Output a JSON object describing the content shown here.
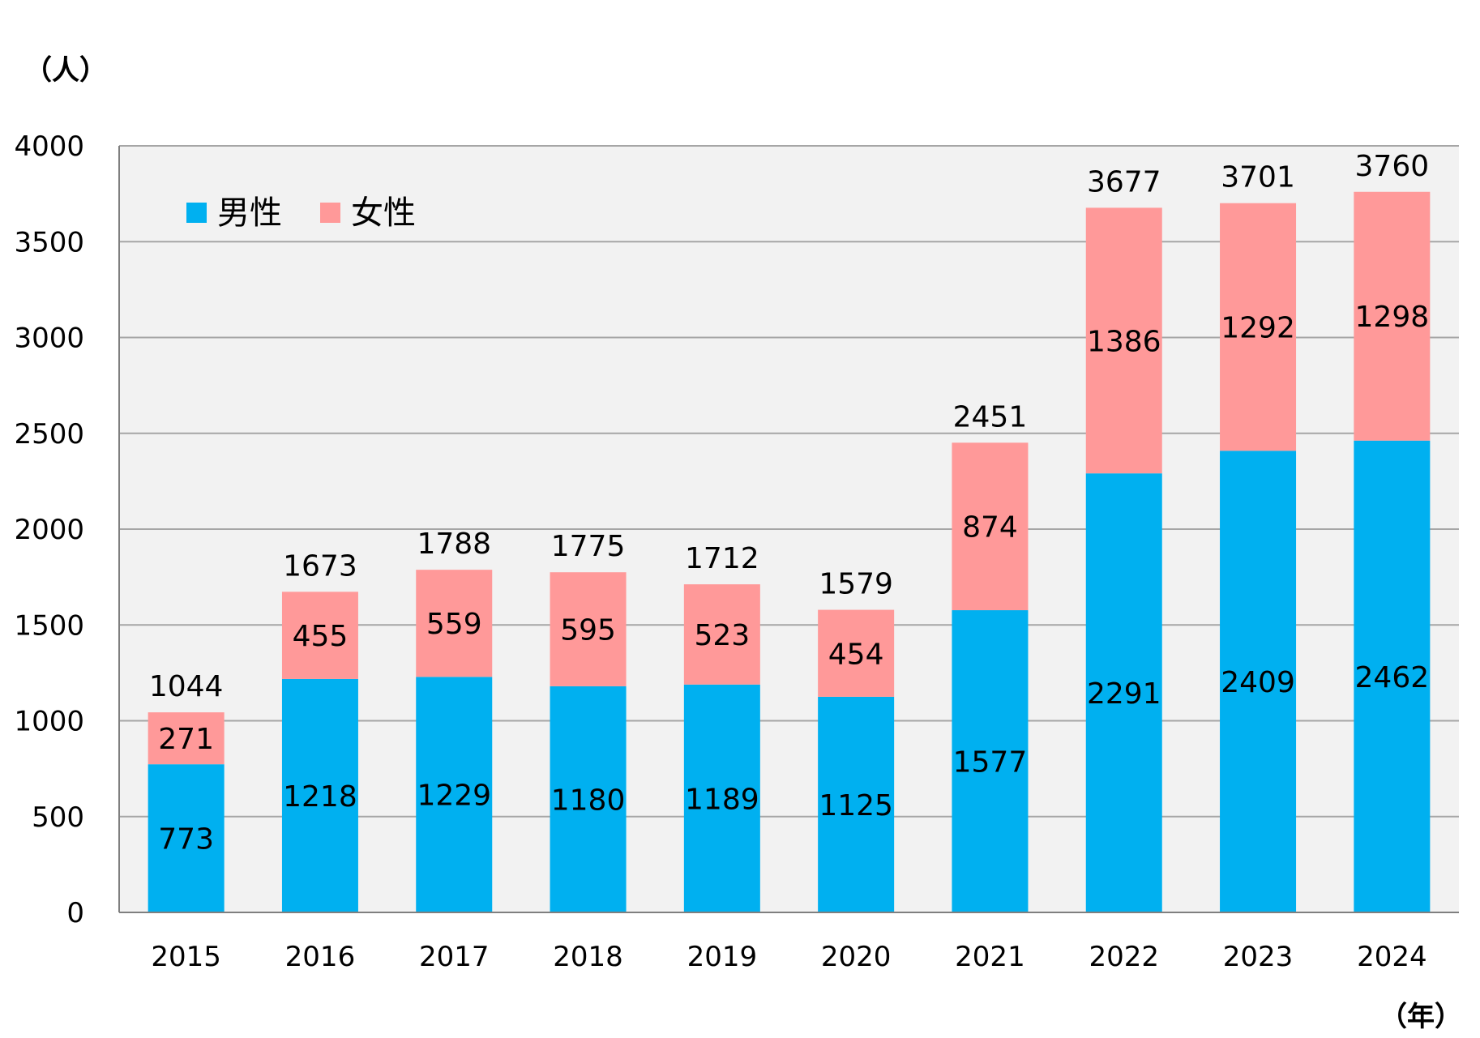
{
  "chart_data": {
    "type": "bar",
    "stacked": true,
    "categories": [
      "2015",
      "2016",
      "2017",
      "2018",
      "2019",
      "2020",
      "2021",
      "2022",
      "2023",
      "2024"
    ],
    "series": [
      {
        "name": "男性",
        "color": "#00B0F0",
        "values": [
          773,
          1218,
          1229,
          1180,
          1189,
          1125,
          1577,
          2291,
          2409,
          2462
        ]
      },
      {
        "name": "女性",
        "color": "#FF9999",
        "values": [
          271,
          455,
          559,
          595,
          523,
          454,
          874,
          1386,
          1292,
          1298
        ]
      }
    ],
    "totals": [
      1044,
      1673,
      1788,
      1775,
      1712,
      1579,
      2451,
      3677,
      3701,
      3760
    ],
    "ylabel": "（人）",
    "xlabel": "（年）",
    "ylim": [
      0,
      4000
    ],
    "yticks": [
      0,
      500,
      1000,
      1500,
      2000,
      2500,
      3000,
      3500,
      4000
    ],
    "grid": true,
    "legend_position": "top-left",
    "plot_background": "#F2F2F2",
    "grid_color": "#A6A6A6"
  }
}
